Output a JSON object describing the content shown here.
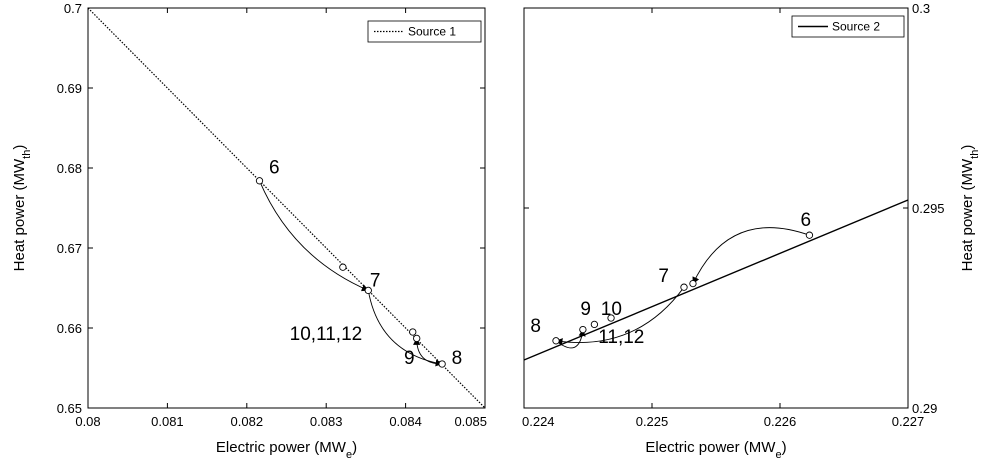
{
  "chart_data": [
    {
      "type": "line",
      "xlabel": "Electric power (MW",
      "xlabel_sub": "e",
      "xlabel_close": ")",
      "ylabel": "Heat power (MW",
      "ylabel_sub": "th",
      "ylabel_close": ")",
      "xlim": [
        0.08,
        0.085
      ],
      "ylim": [
        0.65,
        0.7
      ],
      "xticks": [
        "0.08",
        "0.081",
        "0.082",
        "0.083",
        "0.084",
        "0.085"
      ],
      "yticks": [
        "0.65",
        "0.66",
        "0.67",
        "0.68",
        "0.69",
        "0.7"
      ],
      "xtick_values": [
        0.08,
        0.081,
        0.082,
        0.083,
        0.084,
        0.085
      ],
      "ytick_values": [
        0.65,
        0.66,
        0.67,
        0.68,
        0.69,
        0.7
      ],
      "legend": {
        "entries": [
          "Source 1"
        ],
        "placement": "top-right",
        "style": "dotted"
      },
      "series": [
        {
          "name": "Source 1",
          "style": "dotted",
          "x": [
            0.08,
            0.085
          ],
          "y": [
            0.7,
            0.65
          ]
        }
      ],
      "points": [
        {
          "x": 0.08216,
          "y": 0.6784
        },
        {
          "x": 0.08321,
          "y": 0.6676
        },
        {
          "x": 0.08353,
          "y": 0.6647
        },
        {
          "x": 0.08409,
          "y": 0.6595
        },
        {
          "x": 0.08414,
          "y": 0.6587
        },
        {
          "x": 0.08446,
          "y": 0.6555
        }
      ],
      "labels": [
        {
          "text": "6",
          "x": 0.08228,
          "y": 0.6793
        },
        {
          "text": "7",
          "x": 0.08355,
          "y": 0.6652
        },
        {
          "text": "10,11,12",
          "x": 0.08254,
          "y": 0.6585
        },
        {
          "text": "9",
          "x": 0.08398,
          "y": 0.6555
        },
        {
          "text": "8",
          "x": 0.08458,
          "y": 0.6555
        }
      ],
      "arcs": [
        {
          "from": [
            0.08216,
            0.6784
          ],
          "to": [
            0.08353,
            0.6647
          ],
          "bend": 0.2,
          "arrow_at_end": true
        },
        {
          "from": [
            0.08353,
            0.6647
          ],
          "to": [
            0.08446,
            0.6555
          ],
          "bend": 0.35,
          "arrow_at_end": true
        },
        {
          "from": [
            0.08446,
            0.6555
          ],
          "to": [
            0.08414,
            0.6587
          ],
          "bend": -0.5,
          "arrow_at_end": true
        }
      ]
    },
    {
      "type": "line",
      "xlabel": "Electric power (MW",
      "xlabel_sub": "e",
      "xlabel_close": ")",
      "ylabel": "Heat power (MW",
      "ylabel_sub": "th",
      "ylabel_close": ")",
      "y_axis_side": "right",
      "xlim": [
        0.224,
        0.227
      ],
      "ylim": [
        0.29,
        0.3
      ],
      "xticks": [
        "0.224",
        "0.225",
        "0.226",
        "0.227"
      ],
      "yticks": [
        "0.29",
        "0.295",
        "0.3"
      ],
      "xtick_values": [
        0.224,
        0.225,
        0.226,
        0.227
      ],
      "ytick_values": [
        0.29,
        0.295,
        0.3
      ],
      "legend": {
        "entries": [
          "Source 2"
        ],
        "placement": "top-right",
        "style": "solid"
      },
      "series": [
        {
          "name": "Source 2",
          "style": "solid",
          "x": [
            0.224,
            0.227
          ],
          "y": [
            0.2912,
            0.2952
          ]
        }
      ],
      "points": [
        {
          "x": 0.22623,
          "y": 0.29432
        },
        {
          "x": 0.22525,
          "y": 0.29302
        },
        {
          "x": 0.22532,
          "y": 0.29311
        },
        {
          "x": 0.22446,
          "y": 0.29196
        },
        {
          "x": 0.22455,
          "y": 0.29209
        },
        {
          "x": 0.22468,
          "y": 0.29225
        },
        {
          "x": 0.22425,
          "y": 0.29168
        }
      ],
      "labels": [
        {
          "text": "6",
          "x": 0.22616,
          "y": 0.29455
        },
        {
          "text": "7",
          "x": 0.22505,
          "y": 0.29315
        },
        {
          "text": "9",
          "x": 0.22444,
          "y": 0.29232
        },
        {
          "text": "10",
          "x": 0.2246,
          "y": 0.29232
        },
        {
          "text": "8",
          "x": 0.22405,
          "y": 0.2919
        },
        {
          "text": "11,12",
          "x": 0.22458,
          "y": 0.29163
        }
      ],
      "arcs": [
        {
          "from": [
            0.22623,
            0.29432
          ],
          "to": [
            0.22532,
            0.29311
          ],
          "bend": 0.45,
          "arrow_at_end": true
        },
        {
          "from": [
            0.22525,
            0.29302
          ],
          "to": [
            0.22425,
            0.29168
          ],
          "bend": -0.3,
          "arrow_at_end": true
        },
        {
          "from": [
            0.22425,
            0.29168
          ],
          "to": [
            0.22446,
            0.29196
          ],
          "bend": 0.9,
          "arrow_at_end": true
        }
      ]
    }
  ]
}
